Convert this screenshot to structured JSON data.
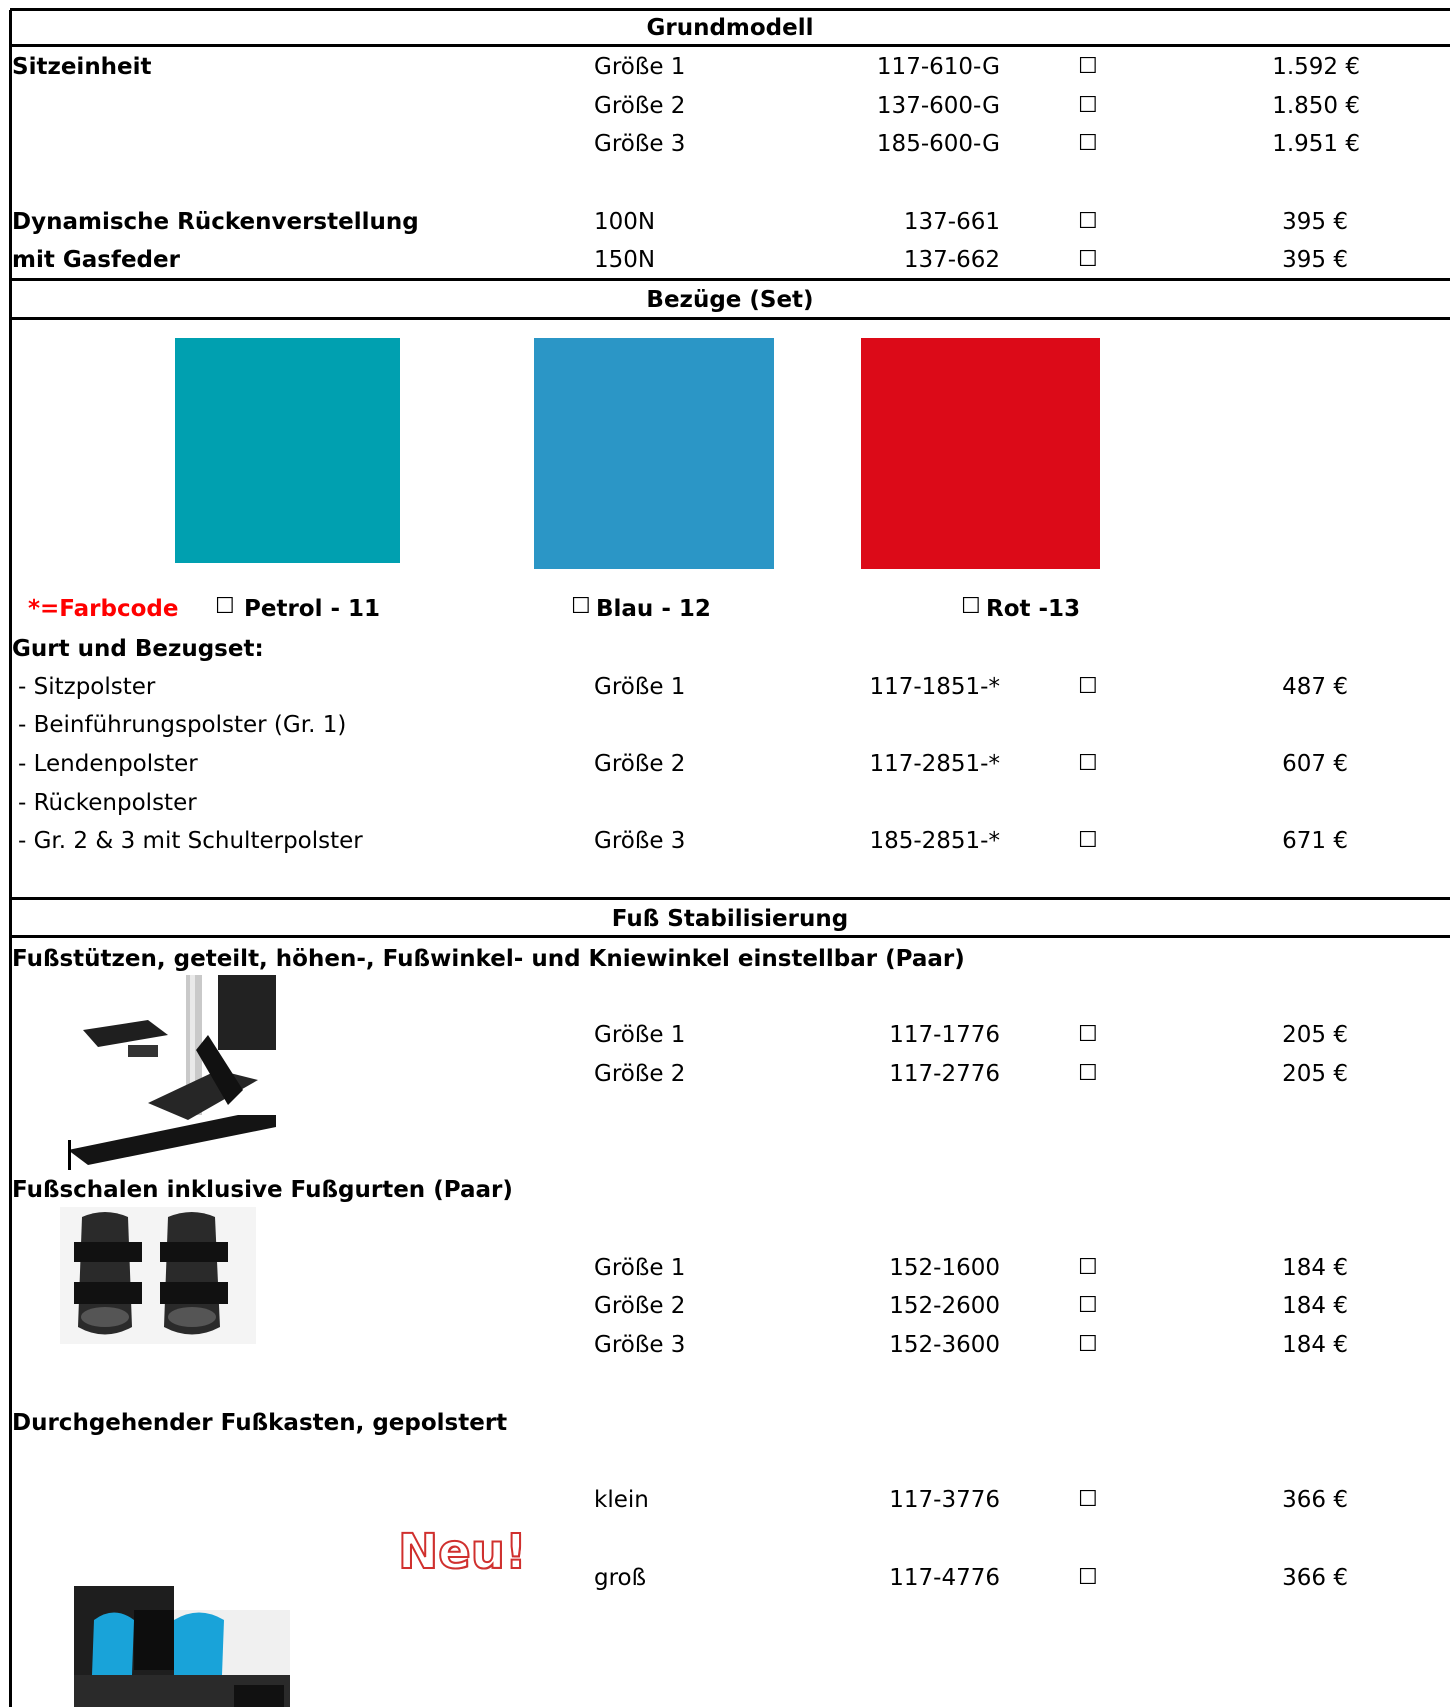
{
  "colors": {
    "petrol": "#00a0b0",
    "blau": "#2b96c6",
    "rot": "#dc0a18",
    "farbcode": "#ff0000"
  },
  "sections": {
    "grundmodell": "Grundmodell",
    "bezuege": "Bezüge (Set)",
    "fuss": "Fuß Stabilisierung"
  },
  "grund": {
    "sitzeinheit": "Sitzeinheit",
    "rows": [
      {
        "size": "Größe 1",
        "code": "117-610-G",
        "price": "1.592 €"
      },
      {
        "size": "Größe 2",
        "code": "137-600-G",
        "price": "1.850 €"
      },
      {
        "size": "Größe 3",
        "code": "185-600-G",
        "price": "1.951 €"
      }
    ],
    "dyn_label_1": "Dynamische Rückenverstellung",
    "dyn_label_2": "mit Gasfeder",
    "dyn_rows": [
      {
        "size": "100N",
        "code": "137-661",
        "price": "395 €"
      },
      {
        "size": "150N",
        "code": "137-662",
        "price": "395 €"
      }
    ]
  },
  "bezug": {
    "farbcode": "*=Farbcode",
    "petrol": "Petrol - 11",
    "blau": "Blau - 12",
    "rot": "Rot -13",
    "set_title": "Gurt und Bezugset:",
    "items": [
      "- Sitzpolster",
      "- Beinführungspolster (Gr. 1)",
      "- Lendenpolster",
      "- Rückenpolster",
      "- Gr. 2 & 3 mit Schulterpolster"
    ],
    "rows": [
      {
        "size": "Größe 1",
        "code": "117-1851-*",
        "price": "487 €"
      },
      {
        "size": "Größe 2",
        "code": "117-2851-*",
        "price": "607 €"
      },
      {
        "size": "Größe 3",
        "code": "185-2851-*",
        "price": "671 €"
      }
    ]
  },
  "fuss": {
    "stuetzen_title": "Fußstützen, geteilt, höhen-, Fußwinkel- und Kniewinkel einstellbar (Paar)",
    "stuetzen_rows": [
      {
        "size": "Größe 1",
        "code": "117-1776",
        "price": "205 €"
      },
      {
        "size": "Größe 2",
        "code": "117-2776",
        "price": "205 €"
      }
    ],
    "schalen_title": "Fußschalen inklusive Fußgurten (Paar)",
    "schalen_rows": [
      {
        "size": "Größe 1",
        "code": "152-1600",
        "price": "184 €"
      },
      {
        "size": "Größe 2",
        "code": "152-2600",
        "price": "184 €"
      },
      {
        "size": "Größe 3",
        "code": "152-3600",
        "price": "184 €"
      }
    ],
    "kasten_title": "Durchgehender Fußkasten, gepolstert",
    "neu": "Neu!",
    "kasten_rows": [
      {
        "size": "klein",
        "code": "117-3776",
        "price": "366 €"
      },
      {
        "size": "groß",
        "code": "117-4776",
        "price": "366 €"
      }
    ]
  },
  "checkbox_glyph": "☐"
}
